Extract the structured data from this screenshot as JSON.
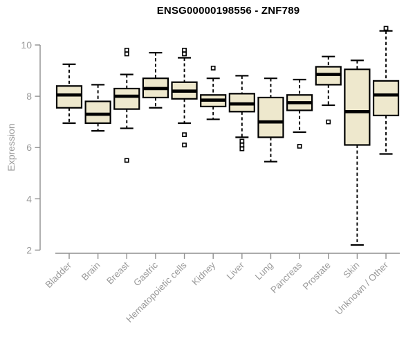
{
  "title": "ENSG00000198556 - ZNF789",
  "chart_data": {
    "type": "boxplot",
    "title": "ENSG00000198556 - ZNF789",
    "xlabel": "",
    "ylabel": "Expression",
    "ylim": [
      2,
      10.7
    ],
    "yticks": [
      10,
      8,
      6,
      4,
      2
    ],
    "grid": false,
    "legend": "none",
    "categories": [
      "Bladder",
      "Brain",
      "Breast",
      "Gastric",
      "Hematopoietic cells",
      "Kidney",
      "Liver",
      "Lung",
      "Pancreas",
      "Prostate",
      "Skin",
      "Unknown / Other"
    ],
    "boxes": [
      {
        "category": "Bladder",
        "low": 6.95,
        "q1": 7.55,
        "median": 8.05,
        "q3": 8.4,
        "high": 9.25,
        "outliers": []
      },
      {
        "category": "Brain",
        "low": 6.65,
        "q1": 6.95,
        "median": 7.3,
        "q3": 7.8,
        "high": 8.45,
        "outliers": []
      },
      {
        "category": "Breast",
        "low": 6.75,
        "q1": 7.5,
        "median": 8.0,
        "q3": 8.3,
        "high": 8.85,
        "outliers": [
          9.8,
          9.65,
          5.5
        ]
      },
      {
        "category": "Gastric",
        "low": 7.55,
        "q1": 7.95,
        "median": 8.3,
        "q3": 8.7,
        "high": 9.7,
        "outliers": []
      },
      {
        "category": "Hematopoietic cells",
        "low": 6.95,
        "q1": 7.9,
        "median": 8.2,
        "q3": 8.55,
        "high": 9.5,
        "outliers": [
          9.8,
          9.65,
          6.5,
          6.1
        ]
      },
      {
        "category": "Kidney",
        "low": 7.1,
        "q1": 7.6,
        "median": 7.85,
        "q3": 8.05,
        "high": 8.7,
        "outliers": [
          9.1
        ]
      },
      {
        "category": "Liver",
        "low": 6.4,
        "q1": 7.4,
        "median": 7.7,
        "q3": 8.1,
        "high": 8.8,
        "outliers": [
          6.25,
          6.1,
          5.95
        ]
      },
      {
        "category": "Lung",
        "low": 5.45,
        "q1": 6.4,
        "median": 7.0,
        "q3": 7.95,
        "high": 8.7,
        "outliers": []
      },
      {
        "category": "Pancreas",
        "low": 6.6,
        "q1": 7.45,
        "median": 7.75,
        "q3": 8.05,
        "high": 8.65,
        "outliers": [
          6.05
        ]
      },
      {
        "category": "Prostate",
        "low": 7.65,
        "q1": 8.45,
        "median": 8.85,
        "q3": 9.15,
        "high": 9.55,
        "outliers": [
          7.0
        ]
      },
      {
        "category": "Skin",
        "low": 2.2,
        "q1": 6.1,
        "median": 7.4,
        "q3": 9.05,
        "high": 9.4,
        "outliers": []
      },
      {
        "category": "Unknown / Other",
        "low": 5.75,
        "q1": 7.25,
        "median": 8.05,
        "q3": 8.6,
        "high": 10.55,
        "outliers": [
          10.65
        ]
      }
    ],
    "colors": {
      "box_fill": "#EEE8CD",
      "box_stroke": "#000000",
      "median": "#000000",
      "whisker": "#000000",
      "outlier_stroke": "#000000",
      "outlier_fill": "#ffffff",
      "axis": "#8f8f8f",
      "tick_label": "#9a9a9a",
      "title": "#000000",
      "background": "#ffffff"
    }
  }
}
